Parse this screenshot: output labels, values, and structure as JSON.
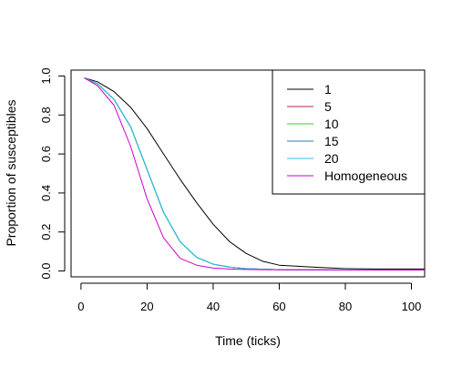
{
  "chart_data": {
    "type": "line",
    "title": "",
    "xlabel": "Time (ticks)",
    "ylabel": "Proportion of susceptibles",
    "xlim": [
      -3,
      104
    ],
    "ylim": [
      -0.03,
      1.03
    ],
    "xticks": [
      0,
      20,
      40,
      60,
      80,
      100
    ],
    "yticks": [
      0.0,
      0.2,
      0.4,
      0.6,
      0.8,
      1.0
    ],
    "xtick_labels": [
      "0",
      "20",
      "40",
      "60",
      "80",
      "100"
    ],
    "ytick_labels": [
      "0.0",
      "0.2",
      "0.4",
      "0.6",
      "0.8",
      "1.0"
    ],
    "grid": false,
    "legend_position": "top-right",
    "x": [
      1,
      5,
      10,
      15,
      20,
      25,
      30,
      35,
      40,
      45,
      50,
      55,
      60,
      70,
      80,
      90,
      100,
      104
    ],
    "series": [
      {
        "name": "1",
        "color": "#000000",
        "values": [
          0.99,
          0.97,
          0.92,
          0.84,
          0.73,
          0.6,
          0.47,
          0.35,
          0.24,
          0.15,
          0.09,
          0.05,
          0.03,
          0.02,
          0.012,
          0.01,
          0.01,
          0.01
        ]
      },
      {
        "name": "5",
        "color": "#c2185b",
        "values": [
          0.99,
          0.96,
          0.88,
          0.74,
          0.52,
          0.3,
          0.15,
          0.07,
          0.035,
          0.02,
          0.012,
          0.009,
          0.007,
          0.006,
          0.005,
          0.005,
          0.005,
          0.005
        ]
      },
      {
        "name": "10",
        "color": "#33cc33",
        "values": [
          0.99,
          0.96,
          0.88,
          0.74,
          0.52,
          0.3,
          0.15,
          0.07,
          0.035,
          0.02,
          0.012,
          0.009,
          0.007,
          0.006,
          0.005,
          0.005,
          0.005,
          0.005
        ]
      },
      {
        "name": "15",
        "color": "#1f7fb8",
        "values": [
          0.99,
          0.96,
          0.88,
          0.74,
          0.52,
          0.3,
          0.15,
          0.07,
          0.035,
          0.02,
          0.012,
          0.009,
          0.007,
          0.006,
          0.005,
          0.005,
          0.005,
          0.005
        ]
      },
      {
        "name": "20",
        "color": "#22c4e0",
        "values": [
          0.99,
          0.96,
          0.88,
          0.74,
          0.52,
          0.3,
          0.15,
          0.07,
          0.035,
          0.02,
          0.012,
          0.009,
          0.007,
          0.006,
          0.005,
          0.005,
          0.005,
          0.005
        ]
      },
      {
        "name": "Homogeneous",
        "color": "#cc00cc",
        "values": [
          0.99,
          0.95,
          0.85,
          0.64,
          0.37,
          0.17,
          0.065,
          0.03,
          0.015,
          0.01,
          0.008,
          0.007,
          0.006,
          0.006,
          0.005,
          0.005,
          0.005,
          0.005
        ]
      }
    ]
  }
}
